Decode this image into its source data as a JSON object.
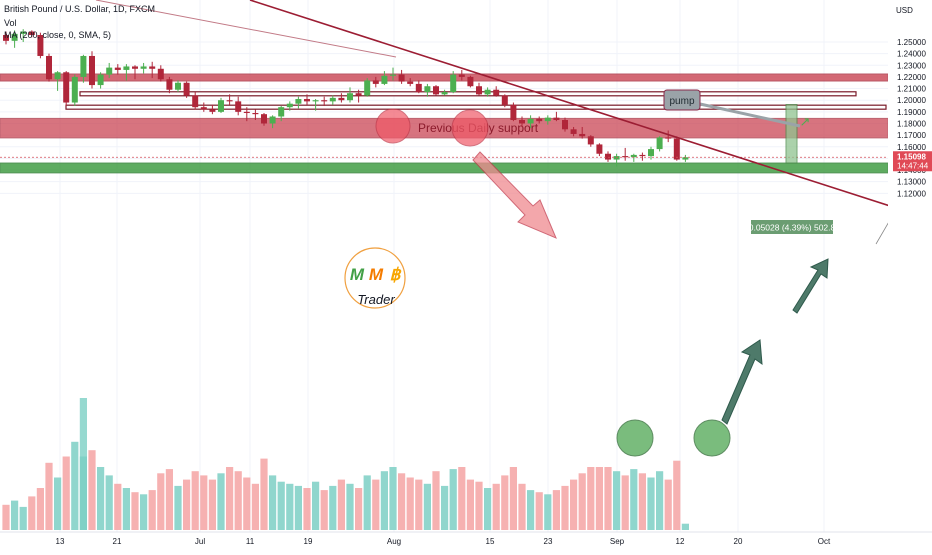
{
  "header": {
    "symbol_line": "British Pound / U.S. Dollar, 1D, FXCM",
    "vol_label": "Vol",
    "ma_label": "MA (200, close, 0, SMA, 5)"
  },
  "price_axis": {
    "currency": "USD",
    "current_price": "1.15098",
    "countdown": "14:47:44"
  },
  "annotations": {
    "support_label": "Previous Daily support",
    "measure_label": "0.05028 (4.39%) 502.8",
    "pump_label": "pump",
    "logo_letters": [
      "M",
      "M",
      "฿"
    ],
    "logo_text": "Trader"
  },
  "colors": {
    "up": "#4caf50",
    "down": "#b0263a",
    "vol_up": "#7ccfc4",
    "vol_down": "#f4a3a3",
    "resistance_zone": "#c9404f",
    "support_zone": "#3d9a3f",
    "trendline": "#9c1d33",
    "arrow_green": "#4e7a6a",
    "bitcoin": "#f7a600"
  },
  "chart_data": {
    "type": "candlestick",
    "instrument": "British Pound / U.S. Dollar",
    "timeframe": "1D",
    "source": "FXCM",
    "y_axis": {
      "ticks": [
        "1.25000",
        "1.24000",
        "1.23000",
        "1.22000",
        "1.21000",
        "1.20000",
        "1.19000",
        "1.18000",
        "1.17000",
        "1.16000",
        "1.15000",
        "1.14000",
        "1.13000",
        "1.12000"
      ],
      "range": [
        1.118,
        1.261
      ]
    },
    "x_axis": {
      "ticks": [
        "13",
        "21",
        "Jul",
        "11",
        "19",
        "Aug",
        "15",
        "23",
        "Sep",
        "12",
        "20",
        "Oct"
      ]
    },
    "candles": [
      {
        "o": 1.256,
        "h": 1.259,
        "l": 1.248,
        "c": 1.251,
        "v": 12
      },
      {
        "o": 1.251,
        "h": 1.26,
        "l": 1.245,
        "c": 1.257,
        "v": 14
      },
      {
        "o": 1.257,
        "h": 1.261,
        "l": 1.25,
        "c": 1.259,
        "v": 11
      },
      {
        "o": 1.259,
        "h": 1.26,
        "l": 1.254,
        "c": 1.256,
        "v": 16
      },
      {
        "o": 1.256,
        "h": 1.258,
        "l": 1.236,
        "c": 1.238,
        "v": 20
      },
      {
        "o": 1.238,
        "h": 1.24,
        "l": 1.216,
        "c": 1.218,
        "v": 32
      },
      {
        "o": 1.218,
        "h": 1.225,
        "l": 1.208,
        "c": 1.224,
        "v": 25
      },
      {
        "o": 1.224,
        "h": 1.225,
        "l": 1.195,
        "c": 1.198,
        "v": 35
      },
      {
        "o": 1.198,
        "h": 1.222,
        "l": 1.195,
        "c": 1.22,
        "v": 42
      },
      {
        "o": 1.22,
        "h": 1.239,
        "l": 1.215,
        "c": 1.238,
        "v": 35
      },
      {
        "o": 1.238,
        "h": 1.242,
        "l": 1.21,
        "c": 1.213,
        "v": 38
      },
      {
        "o": 1.213,
        "h": 1.224,
        "l": 1.21,
        "c": 1.222,
        "v": 30
      },
      {
        "o": 1.222,
        "h": 1.232,
        "l": 1.219,
        "c": 1.228,
        "v": 26
      },
      {
        "o": 1.228,
        "h": 1.231,
        "l": 1.222,
        "c": 1.226,
        "v": 22
      },
      {
        "o": 1.226,
        "h": 1.231,
        "l": 1.217,
        "c": 1.229,
        "v": 20
      },
      {
        "o": 1.229,
        "h": 1.23,
        "l": 1.218,
        "c": 1.227,
        "v": 18
      },
      {
        "o": 1.227,
        "h": 1.232,
        "l": 1.223,
        "c": 1.229,
        "v": 17
      },
      {
        "o": 1.229,
        "h": 1.233,
        "l": 1.219,
        "c": 1.227,
        "v": 19
      },
      {
        "o": 1.227,
        "h": 1.23,
        "l": 1.216,
        "c": 1.218,
        "v": 27
      },
      {
        "o": 1.218,
        "h": 1.22,
        "l": 1.206,
        "c": 1.209,
        "v": 29
      },
      {
        "o": 1.209,
        "h": 1.217,
        "l": 1.207,
        "c": 1.215,
        "v": 21
      },
      {
        "o": 1.215,
        "h": 1.216,
        "l": 1.202,
        "c": 1.204,
        "v": 24
      },
      {
        "o": 1.204,
        "h": 1.207,
        "l": 1.192,
        "c": 1.194,
        "v": 28
      },
      {
        "o": 1.194,
        "h": 1.198,
        "l": 1.19,
        "c": 1.192,
        "v": 26
      },
      {
        "o": 1.192,
        "h": 1.196,
        "l": 1.188,
        "c": 1.19,
        "v": 24
      },
      {
        "o": 1.19,
        "h": 1.202,
        "l": 1.189,
        "c": 1.2,
        "v": 27
      },
      {
        "o": 1.2,
        "h": 1.205,
        "l": 1.196,
        "c": 1.199,
        "v": 30
      },
      {
        "o": 1.199,
        "h": 1.203,
        "l": 1.187,
        "c": 1.19,
        "v": 28
      },
      {
        "o": 1.19,
        "h": 1.194,
        "l": 1.182,
        "c": 1.189,
        "v": 25
      },
      {
        "o": 1.189,
        "h": 1.192,
        "l": 1.183,
        "c": 1.188,
        "v": 22
      },
      {
        "o": 1.188,
        "h": 1.189,
        "l": 1.178,
        "c": 1.18,
        "v": 34
      },
      {
        "o": 1.18,
        "h": 1.187,
        "l": 1.176,
        "c": 1.186,
        "v": 26
      },
      {
        "o": 1.186,
        "h": 1.195,
        "l": 1.182,
        "c": 1.194,
        "v": 23
      },
      {
        "o": 1.194,
        "h": 1.199,
        "l": 1.191,
        "c": 1.197,
        "v": 22
      },
      {
        "o": 1.197,
        "h": 1.203,
        "l": 1.193,
        "c": 1.201,
        "v": 21
      },
      {
        "o": 1.201,
        "h": 1.205,
        "l": 1.196,
        "c": 1.199,
        "v": 20
      },
      {
        "o": 1.199,
        "h": 1.201,
        "l": 1.191,
        "c": 1.2,
        "v": 23
      },
      {
        "o": 1.2,
        "h": 1.203,
        "l": 1.195,
        "c": 1.199,
        "v": 19
      },
      {
        "o": 1.199,
        "h": 1.204,
        "l": 1.196,
        "c": 1.202,
        "v": 21
      },
      {
        "o": 1.202,
        "h": 1.206,
        "l": 1.198,
        "c": 1.2,
        "v": 24
      },
      {
        "o": 1.2,
        "h": 1.211,
        "l": 1.198,
        "c": 1.206,
        "v": 22
      },
      {
        "o": 1.206,
        "h": 1.209,
        "l": 1.198,
        "c": 1.204,
        "v": 20
      },
      {
        "o": 1.204,
        "h": 1.219,
        "l": 1.203,
        "c": 1.217,
        "v": 26
      },
      {
        "o": 1.217,
        "h": 1.22,
        "l": 1.211,
        "c": 1.214,
        "v": 24
      },
      {
        "o": 1.214,
        "h": 1.225,
        "l": 1.213,
        "c": 1.221,
        "v": 28
      },
      {
        "o": 1.221,
        "h": 1.228,
        "l": 1.217,
        "c": 1.222,
        "v": 30
      },
      {
        "o": 1.222,
        "h": 1.226,
        "l": 1.214,
        "c": 1.216,
        "v": 27
      },
      {
        "o": 1.216,
        "h": 1.219,
        "l": 1.212,
        "c": 1.214,
        "v": 25
      },
      {
        "o": 1.214,
        "h": 1.217,
        "l": 1.206,
        "c": 1.207,
        "v": 24
      },
      {
        "o": 1.207,
        "h": 1.214,
        "l": 1.203,
        "c": 1.212,
        "v": 22
      },
      {
        "o": 1.212,
        "h": 1.213,
        "l": 1.204,
        "c": 1.205,
        "v": 28
      },
      {
        "o": 1.205,
        "h": 1.209,
        "l": 1.204,
        "c": 1.207,
        "v": 21
      },
      {
        "o": 1.207,
        "h": 1.225,
        "l": 1.206,
        "c": 1.222,
        "v": 29
      },
      {
        "o": 1.222,
        "h": 1.226,
        "l": 1.217,
        "c": 1.22,
        "v": 30
      },
      {
        "o": 1.22,
        "h": 1.221,
        "l": 1.211,
        "c": 1.212,
        "v": 24
      },
      {
        "o": 1.212,
        "h": 1.215,
        "l": 1.204,
        "c": 1.205,
        "v": 23
      },
      {
        "o": 1.205,
        "h": 1.211,
        "l": 1.203,
        "c": 1.209,
        "v": 20
      },
      {
        "o": 1.209,
        "h": 1.212,
        "l": 1.203,
        "c": 1.204,
        "v": 22
      },
      {
        "o": 1.204,
        "h": 1.205,
        "l": 1.194,
        "c": 1.196,
        "v": 26
      },
      {
        "o": 1.196,
        "h": 1.198,
        "l": 1.182,
        "c": 1.183,
        "v": 30
      },
      {
        "o": 1.183,
        "h": 1.186,
        "l": 1.177,
        "c": 1.18,
        "v": 22
      },
      {
        "o": 1.18,
        "h": 1.187,
        "l": 1.176,
        "c": 1.184,
        "v": 19
      },
      {
        "o": 1.184,
        "h": 1.186,
        "l": 1.18,
        "c": 1.182,
        "v": 18
      },
      {
        "o": 1.182,
        "h": 1.187,
        "l": 1.179,
        "c": 1.185,
        "v": 17
      },
      {
        "o": 1.185,
        "h": 1.19,
        "l": 1.182,
        "c": 1.183,
        "v": 19
      },
      {
        "o": 1.183,
        "h": 1.185,
        "l": 1.173,
        "c": 1.175,
        "v": 21
      },
      {
        "o": 1.175,
        "h": 1.177,
        "l": 1.169,
        "c": 1.171,
        "v": 24
      },
      {
        "o": 1.171,
        "h": 1.177,
        "l": 1.167,
        "c": 1.169,
        "v": 27
      },
      {
        "o": 1.169,
        "h": 1.17,
        "l": 1.16,
        "c": 1.162,
        "v": 30
      },
      {
        "o": 1.162,
        "h": 1.163,
        "l": 1.152,
        "c": 1.154,
        "v": 30
      },
      {
        "o": 1.154,
        "h": 1.156,
        "l": 1.147,
        "c": 1.149,
        "v": 30
      },
      {
        "o": 1.149,
        "h": 1.154,
        "l": 1.143,
        "c": 1.152,
        "v": 28
      },
      {
        "o": 1.152,
        "h": 1.159,
        "l": 1.148,
        "c": 1.151,
        "v": 26
      },
      {
        "o": 1.151,
        "h": 1.154,
        "l": 1.147,
        "c": 1.153,
        "v": 29
      },
      {
        "o": 1.153,
        "h": 1.155,
        "l": 1.148,
        "c": 1.152,
        "v": 27
      },
      {
        "o": 1.152,
        "h": 1.16,
        "l": 1.149,
        "c": 1.158,
        "v": 25
      },
      {
        "o": 1.158,
        "h": 1.169,
        "l": 1.156,
        "c": 1.168,
        "v": 28
      },
      {
        "o": 1.168,
        "h": 1.174,
        "l": 1.164,
        "c": 1.167,
        "v": 24
      },
      {
        "o": 1.167,
        "h": 1.169,
        "l": 1.148,
        "c": 1.149,
        "v": 33
      },
      {
        "o": 1.149,
        "h": 1.153,
        "l": 1.147,
        "c": 1.151,
        "v": 3
      }
    ],
    "horizontal_levels": [
      {
        "label": "resistance zone",
        "from": 1.2165,
        "to": 1.2225
      },
      {
        "label": "Previous Daily support",
        "from": 1.1745,
        "to": 1.1775
      },
      {
        "label": "support zone",
        "from": 1.141,
        "to": 1.146
      },
      {
        "label": "line",
        "value": 1.2055
      },
      {
        "label": "line",
        "value": 1.194
      }
    ],
    "measure": {
      "from": 1.146,
      "to": 1.1963,
      "change": "0.05028",
      "percent": "4.39%",
      "pips": "502.8"
    }
  }
}
